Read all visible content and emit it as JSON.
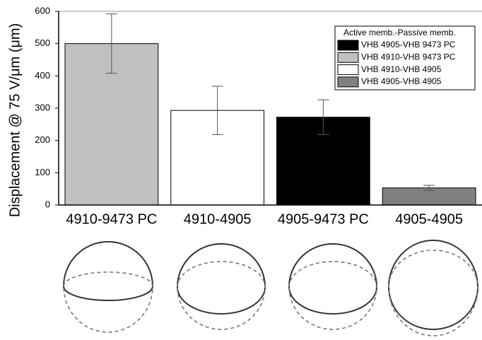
{
  "chart_data": {
    "type": "bar",
    "y_label": "Displacement @ 75 V/μm (μm)",
    "categories": [
      "4910-9473 PC",
      "4910-4905",
      "4905-9473 PC",
      "4905-4905"
    ],
    "legend_title": "Active memb.-Passive memb.",
    "legend": "upper right",
    "series": [
      {
        "name": "VHB 4905-VHB 9473 PC",
        "color": "#000000",
        "values": [
          null,
          null,
          272,
          null
        ],
        "errors": [
          null,
          null,
          54,
          null
        ]
      },
      {
        "name": "VHB 4910-VHB 9473 PC",
        "color": "#c0c0c0",
        "values": [
          500,
          null,
          null,
          null
        ],
        "errors": [
          92,
          null,
          null,
          null
        ]
      },
      {
        "name": "VHB 4910-VHB 4905",
        "color": "#ffffff",
        "values": [
          null,
          293,
          null,
          null
        ],
        "errors": [
          null,
          75,
          null,
          null
        ]
      },
      {
        "name": "VHB 4905-VHB 4905",
        "color": "#808080",
        "values": [
          null,
          null,
          null,
          53
        ],
        "errors": [
          null,
          null,
          null,
          8
        ]
      }
    ],
    "ylim": [
      0,
      600
    ],
    "yticks": [
      0,
      100,
      200,
      300,
      400,
      500,
      600
    ]
  }
}
